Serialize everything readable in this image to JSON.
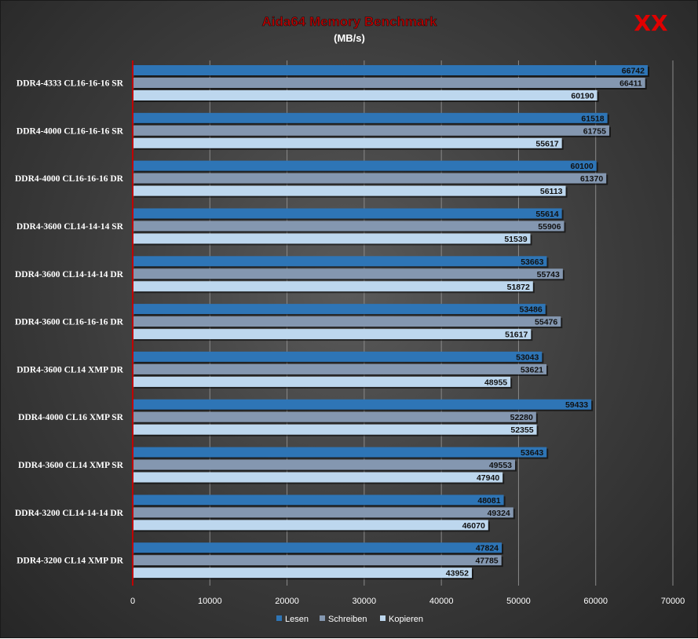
{
  "chart_data": {
    "type": "bar",
    "orientation": "horizontal",
    "title": "Aida64  Memory  Benchmark",
    "subtitle": "(MB/s)",
    "logo": "XX",
    "categories": [
      "DDR4-4333 CL16-16-16 SR",
      "DDR4-4000 CL16-16-16 SR",
      "DDR4-4000 CL16-16-16 DR",
      "DDR4-3600 CL14-14-14 SR",
      "DDR4-3600 CL14-14-14 DR",
      "DDR4-3600 CL16-16-16 DR",
      "DDR4-3600 CL14  XMP  DR",
      "DDR4-4000 CL16  XMP   SR",
      "DDR4-3600 CL14  XMP   SR",
      "DDR4-3200 CL14-14-14 DR",
      "DDR4-3200 CL14  XMP  DR"
    ],
    "series": [
      {
        "name": "Lesen",
        "color": "#2e75b6",
        "values": [
          66742,
          61518,
          60100,
          55614,
          53663,
          53486,
          53043,
          59433,
          53643,
          48081,
          47824
        ]
      },
      {
        "name": "Schreiben",
        "color": "#8497b0",
        "values": [
          66411,
          61755,
          61370,
          55906,
          55743,
          55476,
          53621,
          52280,
          49553,
          49324,
          47785
        ]
      },
      {
        "name": "Kopieren",
        "color": "#bdd7ee",
        "values": [
          60190,
          55617,
          56113,
          51539,
          51872,
          51617,
          48955,
          52355,
          47940,
          46070,
          43952
        ]
      }
    ],
    "x_ticks": [
      0,
      10000,
      20000,
      30000,
      40000,
      50000,
      60000,
      70000
    ],
    "xlim": [
      0,
      70000
    ],
    "grid": true,
    "legend_position": "bottom",
    "colors": {
      "title": "#c00000",
      "logo": "#e00000",
      "axis_line": "#c00000",
      "grid": "#8a8a8a"
    }
  }
}
